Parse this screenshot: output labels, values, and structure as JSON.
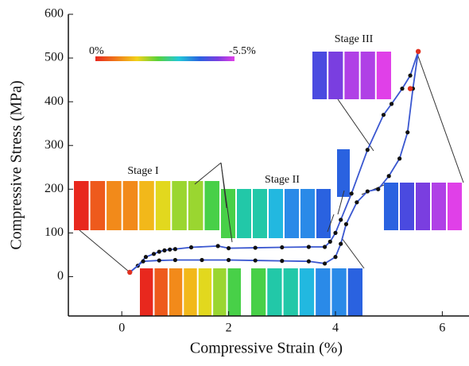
{
  "chart_data": {
    "type": "line",
    "xlabel": "Compressive Strain (%)",
    "ylabel": "Compressive Stress (MPa)",
    "xlim": [
      -1,
      6.5
    ],
    "ylim": [
      -90,
      600
    ],
    "xticks": [
      0,
      2,
      4,
      6
    ],
    "yticks": [
      0,
      100,
      200,
      300,
      400,
      500,
      600
    ],
    "series": [
      {
        "color": "#3a57d0",
        "marker_color": "#111111",
        "x": [
          0.15,
          0.3,
          0.45,
          0.6,
          0.7,
          0.8,
          0.9,
          1.0,
          1.3,
          1.8,
          2.0,
          2.5,
          3.0,
          3.5,
          3.8,
          3.9,
          4.0,
          4.1,
          4.3,
          4.6,
          4.9,
          5.05,
          5.25,
          5.4,
          5.55
        ],
        "y": [
          10,
          25,
          45,
          52,
          57,
          60,
          62,
          63,
          67,
          70,
          65,
          66,
          67,
          68,
          68,
          80,
          100,
          130,
          190,
          290,
          370,
          395,
          430,
          460,
          515
        ]
      },
      {
        "color": "#3a57d0",
        "marker_color": "#111111",
        "x": [
          0.15,
          0.4,
          0.7,
          1.0,
          1.5,
          2.0,
          2.5,
          3.0,
          3.5,
          3.8,
          4.0,
          4.1,
          4.2,
          4.4,
          4.6,
          4.8,
          5.0,
          5.2,
          5.35,
          5.45,
          5.55
        ],
        "y": [
          10,
          35,
          37,
          38,
          38,
          38,
          37,
          36,
          35,
          30,
          45,
          75,
          120,
          170,
          195,
          200,
          230,
          270,
          330,
          430,
          515
        ]
      }
    ],
    "highlight": {
      "color": "#e03020",
      "x": [
        0.15,
        5.4,
        5.55
      ],
      "y": [
        10,
        430,
        515
      ]
    },
    "annotations": [
      "Stage I",
      "Stage II",
      "Stage III"
    ],
    "colorbar_labels": [
      "0%",
      "-5.5%"
    ]
  }
}
